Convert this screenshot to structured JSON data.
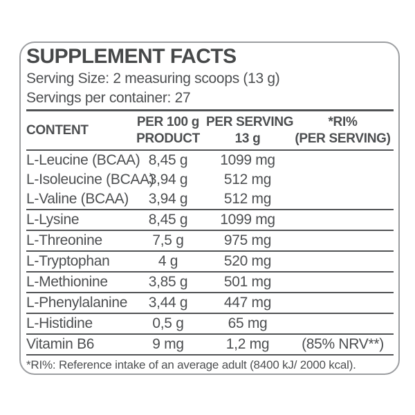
{
  "title": "SUPPLEMENT FACTS",
  "serving_size": "Serving Size: 2 measuring scoops (13 g)",
  "servings_per_container": "Servings per container: 27",
  "colors": {
    "text": "#4c4e50",
    "border": "#9b9da0",
    "divider": "#505254",
    "background": "#ffffff"
  },
  "table": {
    "columns": [
      {
        "line1": "CONTENT",
        "line2": ""
      },
      {
        "line1": "PER 100 g",
        "line2": "PRODUCT"
      },
      {
        "line1": "PER SERVING",
        "line2": "13 g"
      },
      {
        "line1": "*RI%",
        "line2": "(PER SERVING)"
      }
    ],
    "rows": [
      {
        "name": "L-Leucine (BCAA)",
        "per_100g": "8,45 g",
        "per_serving": "1099 mg",
        "ri": "",
        "divider_after": false
      },
      {
        "name": "L-Isoleucine (BCAA)",
        "per_100g": "3,94 g",
        "per_serving": "512 mg",
        "ri": "",
        "divider_after": false
      },
      {
        "name": "L-Valine (BCAA)",
        "per_100g": "3,94 g",
        "per_serving": "512 mg",
        "ri": "",
        "divider_after": true
      },
      {
        "name": "L-Lysine",
        "per_100g": "8,45 g",
        "per_serving": "1099 mg",
        "ri": "",
        "divider_after": true
      },
      {
        "name": "L-Threonine",
        "per_100g": "7,5 g",
        "per_serving": "975 mg",
        "ri": "",
        "divider_after": true
      },
      {
        "name": "L-Tryptophan",
        "per_100g": "4 g",
        "per_serving": "520 mg",
        "ri": "",
        "divider_after": true
      },
      {
        "name": "L-Methionine",
        "per_100g": "3,85 g",
        "per_serving": "501 mg",
        "ri": "",
        "divider_after": true
      },
      {
        "name": "L-Phenylalanine",
        "per_100g": "3,44 g",
        "per_serving": "447 mg",
        "ri": "",
        "divider_after": true
      },
      {
        "name": "L-Histidine",
        "per_100g": "0,5 g",
        "per_serving": "65 mg",
        "ri": "",
        "divider_after": true
      },
      {
        "name": "Vitamin B6",
        "per_100g": "9 mg",
        "per_serving": "1,2 mg",
        "ri": "(85% NRV**)",
        "divider_after": true
      }
    ]
  },
  "footnote": "*RI%: Reference intake of an average adult (8400 kJ/ 2000 kcal)."
}
